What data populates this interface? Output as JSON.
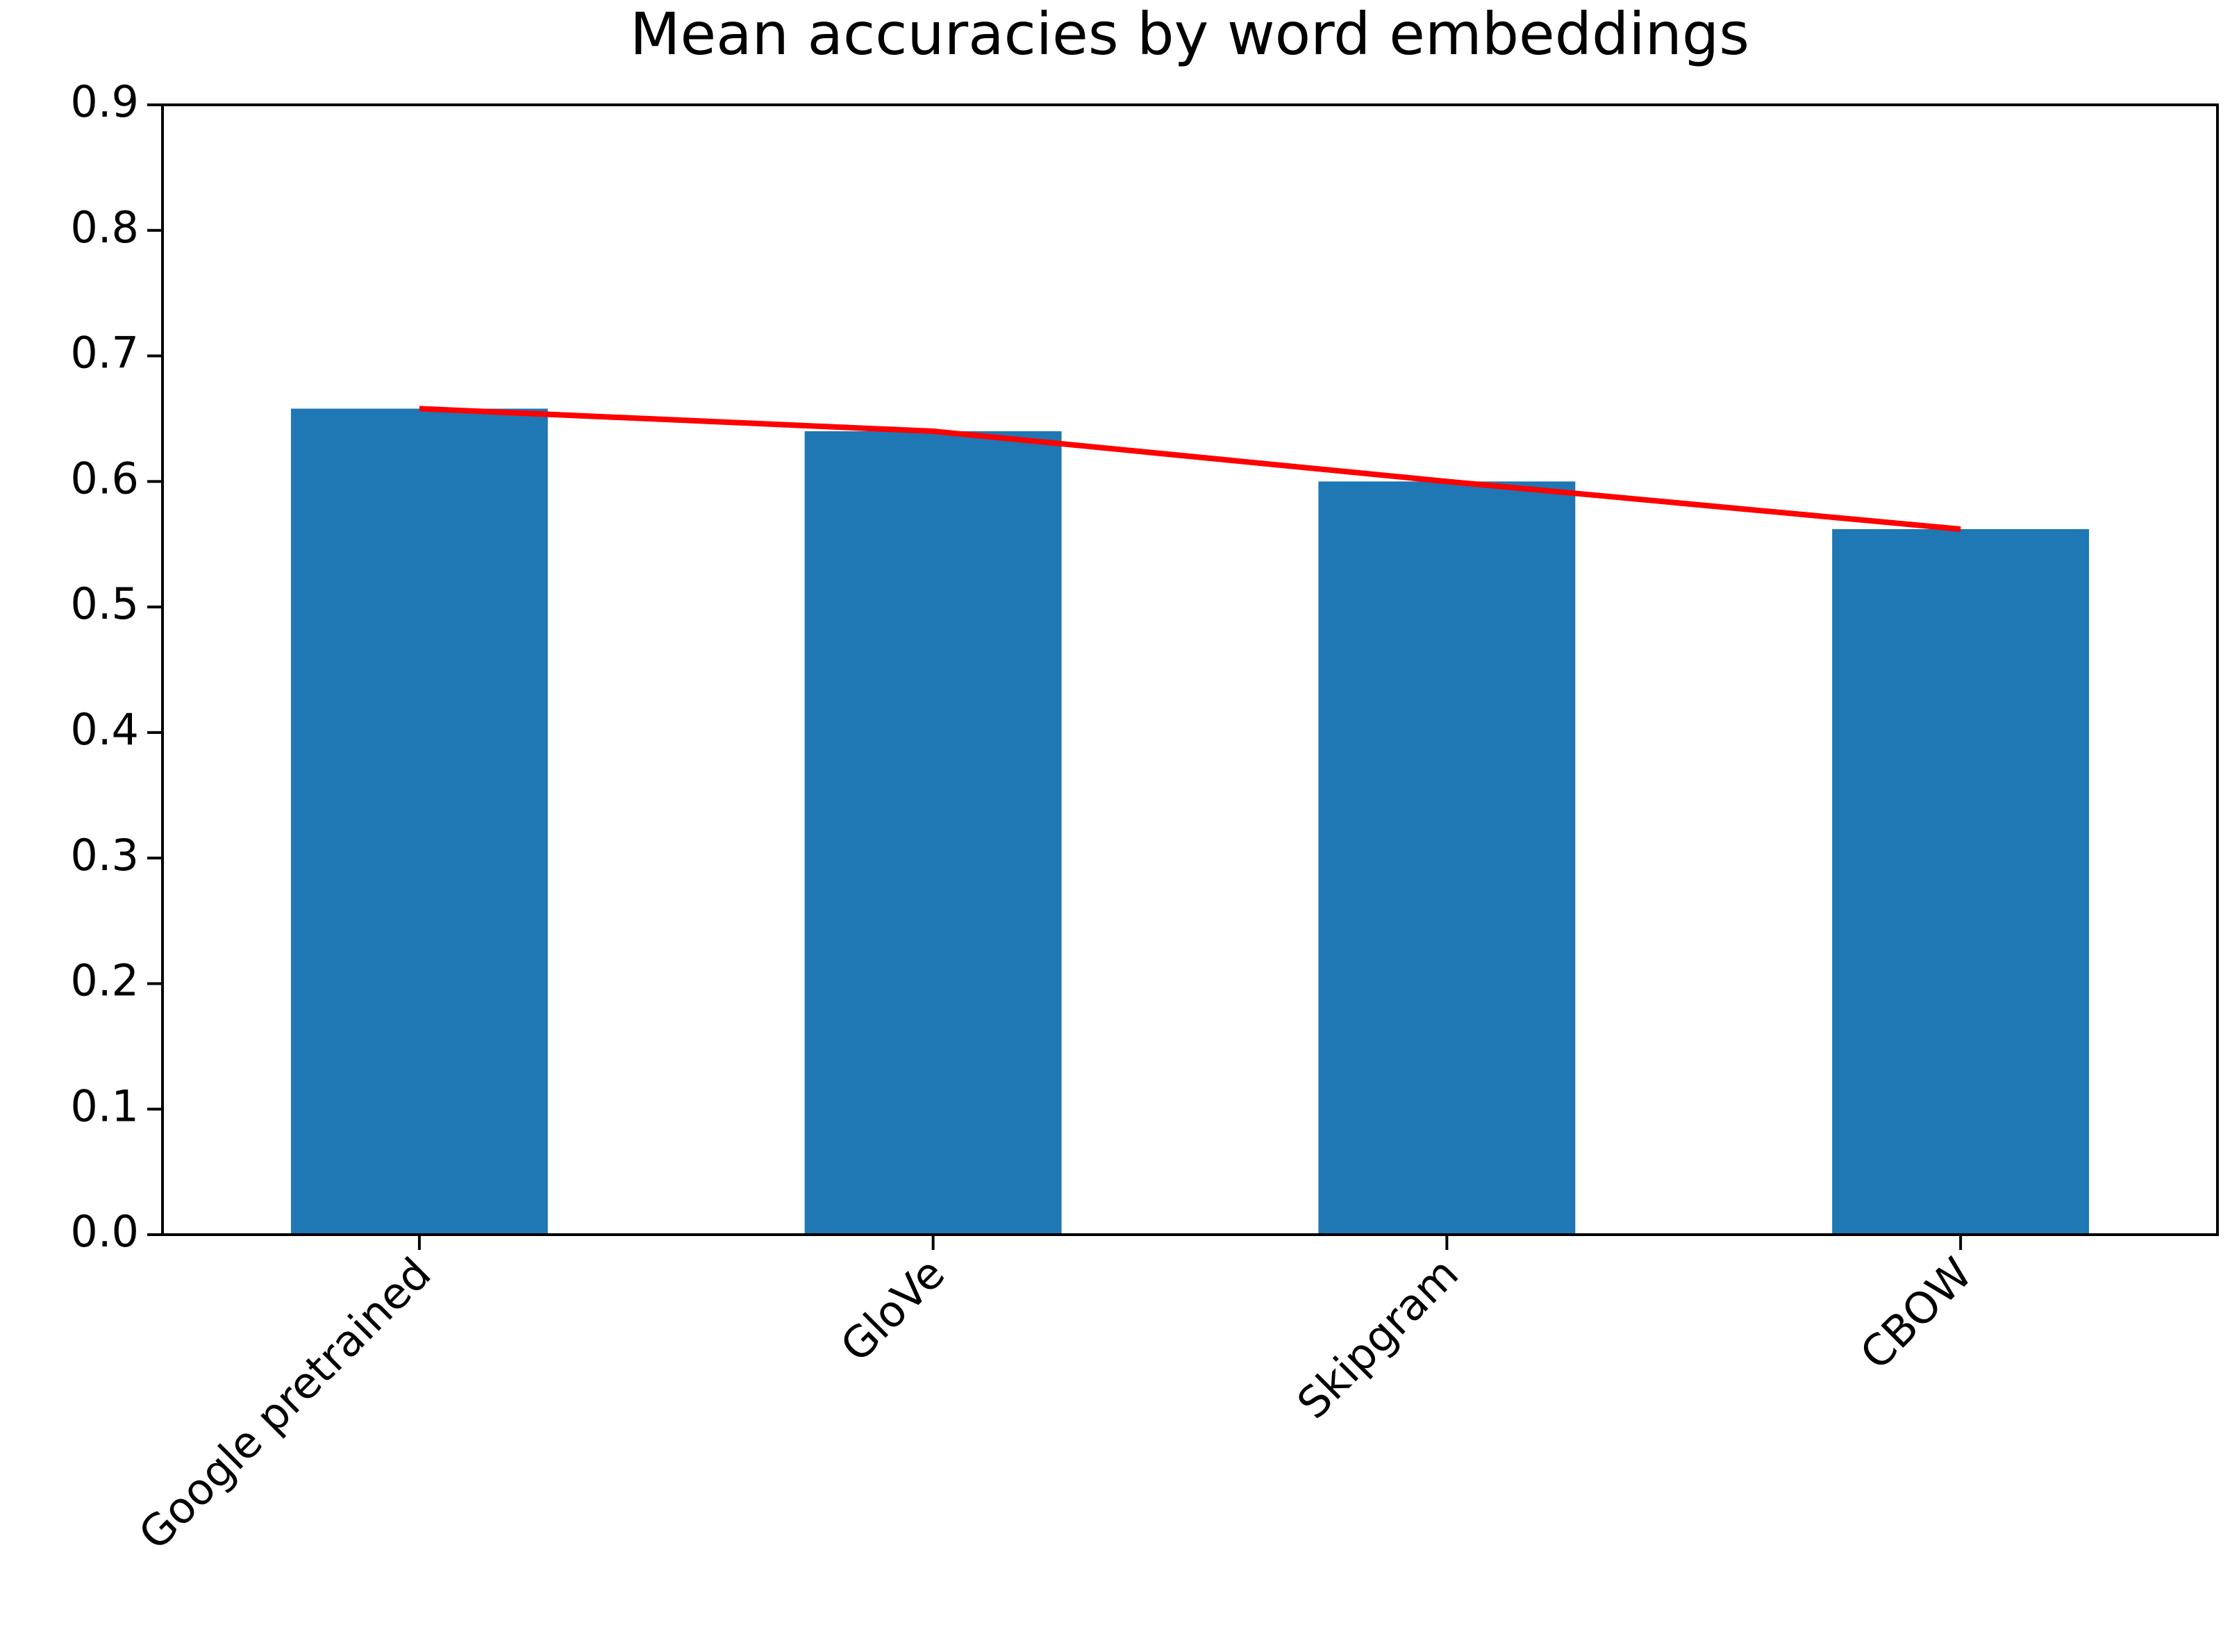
{
  "chart_data": {
    "type": "bar",
    "title": "Mean accuracies by word embeddings",
    "categories": [
      "Google pretrained",
      "GloVe",
      "Skipgram",
      "CBOW"
    ],
    "series": [
      {
        "type": "bar",
        "color": "#1f77b4",
        "values": [
          0.658,
          0.64,
          0.6,
          0.562
        ]
      },
      {
        "type": "line",
        "color": "#ff0000",
        "values": [
          0.658,
          0.64,
          0.6,
          0.562
        ]
      }
    ],
    "ylim": [
      0,
      0.9
    ],
    "yticks": [
      {
        "value": 0,
        "label": "0.0"
      },
      0.1,
      0.2,
      0.3,
      0.4,
      0.5,
      0.6,
      0.7,
      0.8,
      0.9
    ],
    "grid": false
  }
}
